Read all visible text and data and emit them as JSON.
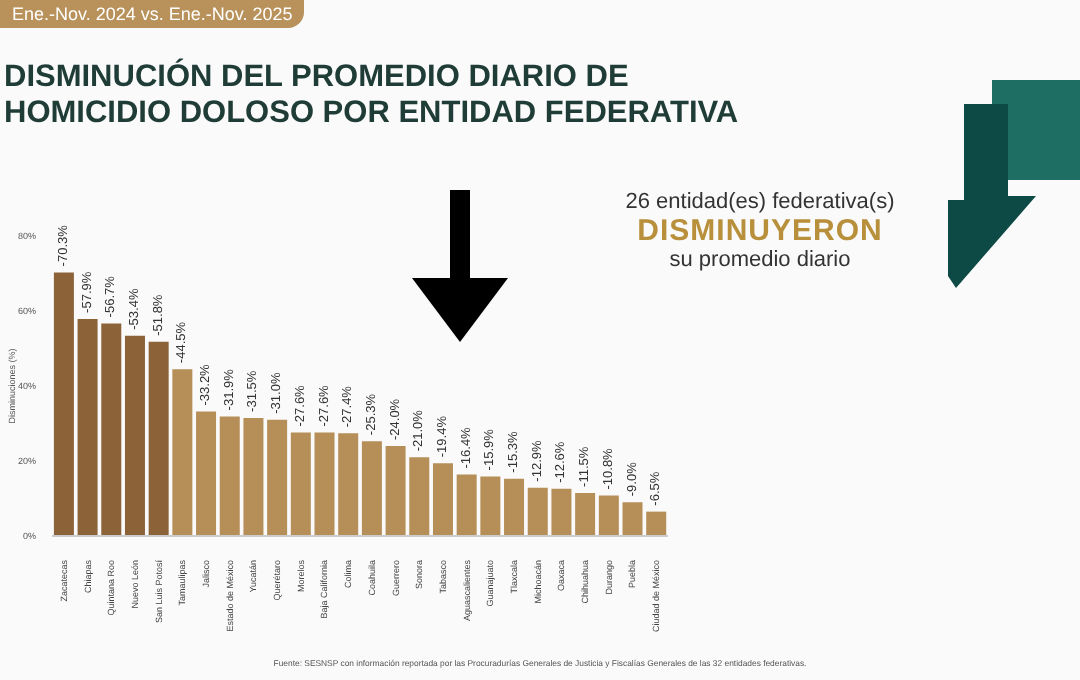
{
  "chart_data": {
    "type": "bar",
    "title": "DISMINUCIÓN DEL PROMEDIO DIARIO DE HOMICIDIO DOLOSO POR ENTIDAD FEDERATIVA",
    "subtitle": "Ene.-Nov. 2024 vs. Ene.-Nov. 2025",
    "ylabel": "Disminuciones (%)",
    "categories": [
      "Zacatecas",
      "Chiapas",
      "Quintana Roo",
      "Nuevo León",
      "San Luis Potosí",
      "Tamaulipas",
      "Jalisco",
      "Estado de México",
      "Yucatán",
      "Querétaro",
      "Morelos",
      "Baja California",
      "Colima",
      "Coahuila",
      "Guerrero",
      "Sonora",
      "Tabasco",
      "Aguascalientes",
      "Guanajuato",
      "Tlaxcala",
      "Michoacán",
      "Oaxaca",
      "Chihuahua",
      "Durango",
      "Puebla",
      "Ciudad de México"
    ],
    "values": [
      -70.3,
      -57.9,
      -56.7,
      -53.4,
      -51.8,
      -44.5,
      -33.2,
      -31.9,
      -31.5,
      -31.0,
      -27.6,
      -27.6,
      -27.4,
      -25.3,
      -24.0,
      -21.0,
      -19.4,
      -16.4,
      -15.9,
      -15.3,
      -12.9,
      -12.6,
      -11.5,
      -10.8,
      -9.0,
      -6.5
    ],
    "value_labels": [
      "-70.3%",
      "-57.9%",
      "-56.7%",
      "-53.4%",
      "-51.8%",
      "-44.5%",
      "-33.2%",
      "-31.9%",
      "-31.5%",
      "-31.0%",
      "-27.6%",
      "-27.6%",
      "-27.4%",
      "-25.3%",
      "-24.0%",
      "-21.0%",
      "-19.4%",
      "-16.4%",
      "-15.9%",
      "-15.3%",
      "-12.9%",
      "-12.6%",
      "-11.5%",
      "-10.8%",
      "-9.0%",
      "-6.5%"
    ],
    "colors": [
      "#8c6239",
      "#8c6239",
      "#8c6239",
      "#8c6239",
      "#8c6239",
      "#b68e58",
      "#b68e58",
      "#b68e58",
      "#b68e58",
      "#b68e58",
      "#b68e58",
      "#b68e58",
      "#b68e58",
      "#b68e58",
      "#b68e58",
      "#b68e58",
      "#b68e58",
      "#b68e58",
      "#b68e58",
      "#b68e58",
      "#b68e58",
      "#b68e58",
      "#b68e58",
      "#b68e58",
      "#b68e58",
      "#b68e58"
    ],
    "ylim": [
      0,
      -80
    ],
    "yticks": [
      {
        "value": 0,
        "label": "0%"
      },
      {
        "value": -20,
        "label": "20%"
      },
      {
        "value": -40,
        "label": "40%"
      },
      {
        "value": -60,
        "label": "60%"
      },
      {
        "value": -80,
        "label": "80%"
      }
    ],
    "grid": false,
    "legend": false,
    "annotations": [
      "26 entidad(es) federativa(s)",
      "DISMINUYERON",
      "su promedio diario",
      "Fuente: SESNSP con información reportada por las Procuradurías Generales de Justicia y Fiscalías Generales de las 32 entidades federativas."
    ]
  }
}
